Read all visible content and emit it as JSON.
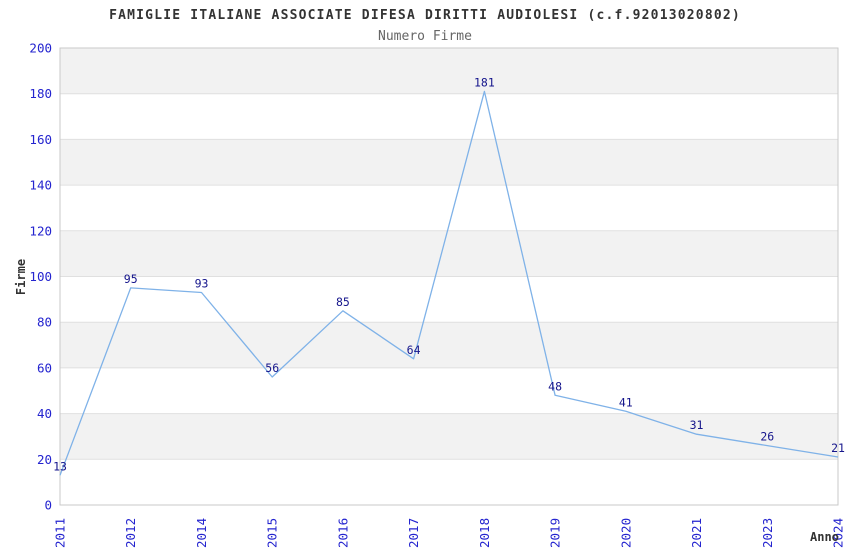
{
  "chart_data": {
    "type": "line",
    "title": "FAMIGLIE ITALIANE ASSOCIATE DIFESA DIRITTI AUDIOLESI (c.f.92013020802)",
    "subtitle": "Numero Firme",
    "xlabel": "Anno",
    "ylabel": "Firme",
    "categories": [
      "2011",
      "2012",
      "2014",
      "2015",
      "2016",
      "2017",
      "2018",
      "2019",
      "2020",
      "2021",
      "2023",
      "2024"
    ],
    "values": [
      13,
      95,
      93,
      56,
      85,
      64,
      181,
      48,
      41,
      31,
      26,
      21
    ],
    "ylim": [
      0,
      200
    ],
    "ytick_step": 20,
    "grid": "horizontal-bands-alternating",
    "legend": "none",
    "colors": {
      "line": "#7fb2e8",
      "data_label": "#16168c",
      "tick_label": "#2424cf",
      "band_gray": "#f2f2f2",
      "grid_line": "#e0e0e0",
      "plot_border": "#c9c9c9",
      "title": "#333333",
      "subtitle": "#666666",
      "axis_label": "#333333",
      "background": "#ffffff"
    }
  }
}
